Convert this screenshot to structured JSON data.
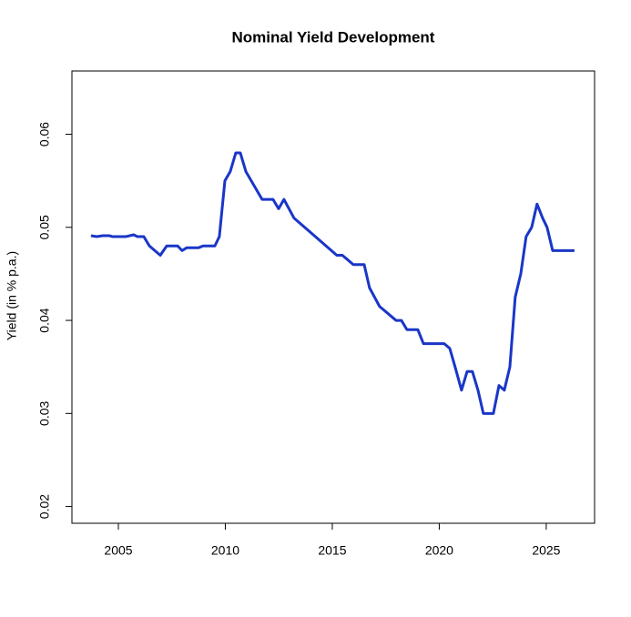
{
  "chart_data": {
    "type": "line",
    "title": "Nominal Yield Development",
    "y_label": "Yield (in % p.a.)",
    "xlim": [
      2002.83,
      2027.26
    ],
    "xticks": [
      2005,
      2010,
      2015,
      2020,
      2025
    ],
    "ylim": [
      0.0182,
      0.0668
    ],
    "yticks": [
      0.02,
      0.03,
      0.04,
      0.05,
      0.06
    ],
    "x": [
      2003.72,
      2003.98,
      2004.28,
      2004.57,
      2004.74,
      2005.34,
      2005.72,
      2005.89,
      2006.19,
      2006.45,
      2006.96,
      2007.26,
      2007.77,
      2007.98,
      2008.19,
      2008.74,
      2008.96,
      2009.51,
      2009.72,
      2009.98,
      2010.23,
      2010.49,
      2010.7,
      2010.96,
      2011.72,
      2012.23,
      2012.49,
      2012.74,
      2013.21,
      2015.21,
      2015.47,
      2015.98,
      2016.49,
      2016.74,
      2017.21,
      2017.98,
      2018.23,
      2018.49,
      2019.0,
      2019.26,
      2020.23,
      2020.49,
      2020.74,
      2021.04,
      2021.3,
      2021.55,
      2021.81,
      2022.06,
      2022.53,
      2022.79,
      2023.04,
      2023.3,
      2023.55,
      2023.81,
      2024.06,
      2024.32,
      2024.57,
      2024.83,
      2025.04,
      2025.3,
      2026.32
    ],
    "series": [
      {
        "name": "Yield",
        "color": "#1a36c8",
        "values": [
          0.0491,
          0.049,
          0.0491,
          0.0491,
          0.049,
          0.049,
          0.0492,
          0.049,
          0.049,
          0.048,
          0.047,
          0.048,
          0.048,
          0.0475,
          0.0478,
          0.0478,
          0.048,
          0.048,
          0.049,
          0.055,
          0.056,
          0.058,
          0.058,
          0.056,
          0.053,
          0.053,
          0.052,
          0.053,
          0.051,
          0.047,
          0.047,
          0.046,
          0.046,
          0.0435,
          0.0415,
          0.04,
          0.04,
          0.039,
          0.039,
          0.0375,
          0.0375,
          0.037,
          0.035,
          0.0325,
          0.0345,
          0.0345,
          0.0325,
          0.03,
          0.03,
          0.033,
          0.0325,
          0.035,
          0.0425,
          0.045,
          0.049,
          0.05,
          0.0525,
          0.051,
          0.05,
          0.0475,
          0.0475
        ]
      }
    ]
  }
}
